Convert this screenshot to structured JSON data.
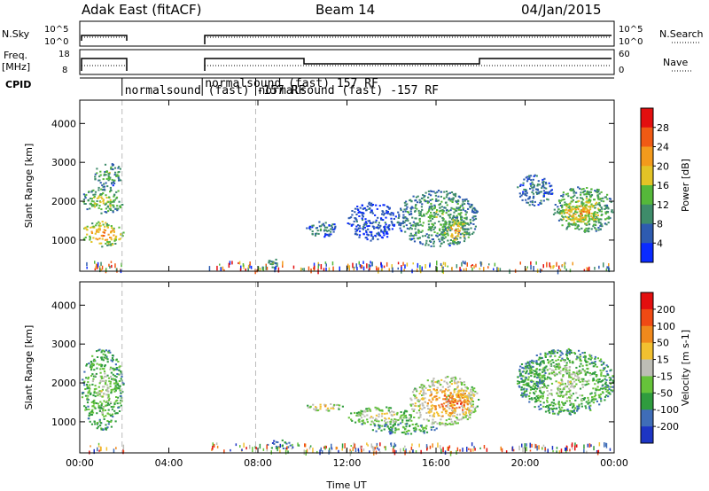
{
  "header": {
    "radar": "Adak East (fitACF)",
    "beam": "Beam 14",
    "date": "04/Jan/2015"
  },
  "aux_panels": {
    "nsky_label": "N.Sky",
    "nsearch_label": "N.Search",
    "nsky_ticks": [
      "10^5",
      "10^0"
    ],
    "freq_label_1": "Freq.",
    "freq_label_2": "[MHz]",
    "freq_ticks": [
      "18",
      "8"
    ],
    "nave_label": "Nave",
    "nave_ticks": [
      "60",
      "0"
    ],
    "cpid_label": "CPID",
    "cpid_entries": [
      {
        "text": "normalsound (fast) -157 RF",
        "start_hour": 1.9,
        "row": 2
      },
      {
        "text": "normalsound (fast) 157 RF",
        "start_hour": 5.5,
        "row": 1
      },
      {
        "text": "normalsound (fast) -157 RF",
        "start_hour": 7.9,
        "row": 2
      }
    ]
  },
  "chart_data": [
    {
      "type": "heatmap",
      "name": "power",
      "ylabel": "Slant Range [km]",
      "ylim": [
        200,
        4600
      ],
      "yticks": [
        "1000",
        "2000",
        "3000",
        "4000"
      ],
      "xlim": [
        0,
        24
      ],
      "xticks": [
        "00:00",
        "04:00",
        "08:00",
        "12:00",
        "16:00",
        "20:00",
        "00:00"
      ],
      "colorbar_label": "Power [dB]",
      "colorbar_ticks": [
        "4",
        "8",
        "12",
        "16",
        "20",
        "24",
        "28"
      ],
      "colorbar_colors": [
        "#0a2bff",
        "#2e5bb0",
        "#3e8c6a",
        "#55b83a",
        "#e3c326",
        "#f39a1c",
        "#f05a14",
        "#e30f0f"
      ],
      "regions": [
        {
          "t": [
            0.05,
            1.95
          ],
          "r": [
            850,
            1500
          ],
          "level": 6
        },
        {
          "t": [
            0.05,
            1.95
          ],
          "r": [
            1700,
            2400
          ],
          "level": 4
        },
        {
          "t": [
            0.6,
            1.9
          ],
          "r": [
            2400,
            3000
          ],
          "level": 3
        },
        {
          "t": [
            8.4,
            8.9
          ],
          "r": [
            300,
            550
          ],
          "level": 3
        },
        {
          "t": [
            10.1,
            11.6
          ],
          "r": [
            1100,
            1500
          ],
          "level": 2
        },
        {
          "t": [
            12.0,
            14.2
          ],
          "r": [
            1000,
            2000
          ],
          "level": 1
        },
        {
          "t": [
            14.2,
            17.9
          ],
          "r": [
            850,
            2300
          ],
          "level": 3
        },
        {
          "t": [
            16.2,
            17.5
          ],
          "r": [
            900,
            1600
          ],
          "level": 5
        },
        {
          "t": [
            19.6,
            21.2
          ],
          "r": [
            1900,
            2700
          ],
          "level": 2
        },
        {
          "t": [
            21.2,
            24.0
          ],
          "r": [
            1200,
            2400
          ],
          "level": 4
        },
        {
          "t": [
            21.5,
            23.4
          ],
          "r": [
            1400,
            2000
          ],
          "level": 6
        }
      ]
    },
    {
      "type": "heatmap",
      "name": "velocity",
      "ylabel": "Slant Range [km]",
      "ylim": [
        200,
        4600
      ],
      "yticks": [
        "1000",
        "2000",
        "3000",
        "4000"
      ],
      "xlim": [
        0,
        24
      ],
      "xticks": [
        "00:00",
        "04:00",
        "08:00",
        "12:00",
        "16:00",
        "20:00",
        "00:00"
      ],
      "xlabel": "Time UT",
      "colorbar_label": "Velocity [m s-1]",
      "colorbar_ticks": [
        "200",
        "100",
        "50",
        "15",
        "-15",
        "-50",
        "-100",
        "-200"
      ],
      "colorbar_colors": [
        "#1d35c4",
        "#3f6db8",
        "#2f9c3e",
        "#66c33a",
        "#bdbdb5",
        "#f2c030",
        "#f0891c",
        "#f04a14",
        "#e30f0f"
      ],
      "regions": [
        {
          "t": [
            0.05,
            1.95
          ],
          "r": [
            800,
            2900
          ],
          "level": 4
        },
        {
          "t": [
            8.4,
            9.5
          ],
          "r": [
            300,
            550
          ],
          "level": 2
        },
        {
          "t": [
            10.1,
            11.8
          ],
          "r": [
            1300,
            1500
          ],
          "level": 6
        },
        {
          "t": [
            12.0,
            15.0
          ],
          "r": [
            900,
            1400
          ],
          "level": 5
        },
        {
          "t": [
            13.0,
            16.0
          ],
          "r": [
            700,
            1000
          ],
          "level": 3
        },
        {
          "t": [
            14.8,
            17.9
          ],
          "r": [
            900,
            2200
          ],
          "level": 7
        },
        {
          "t": [
            16.4,
            17.7
          ],
          "r": [
            1100,
            1900
          ],
          "level": 8
        },
        {
          "t": [
            19.6,
            24.0
          ],
          "r": [
            1200,
            2900
          ],
          "level": 4
        },
        {
          "t": [
            19.6,
            21.0
          ],
          "r": [
            1900,
            2600
          ],
          "level": 3
        }
      ]
    }
  ]
}
